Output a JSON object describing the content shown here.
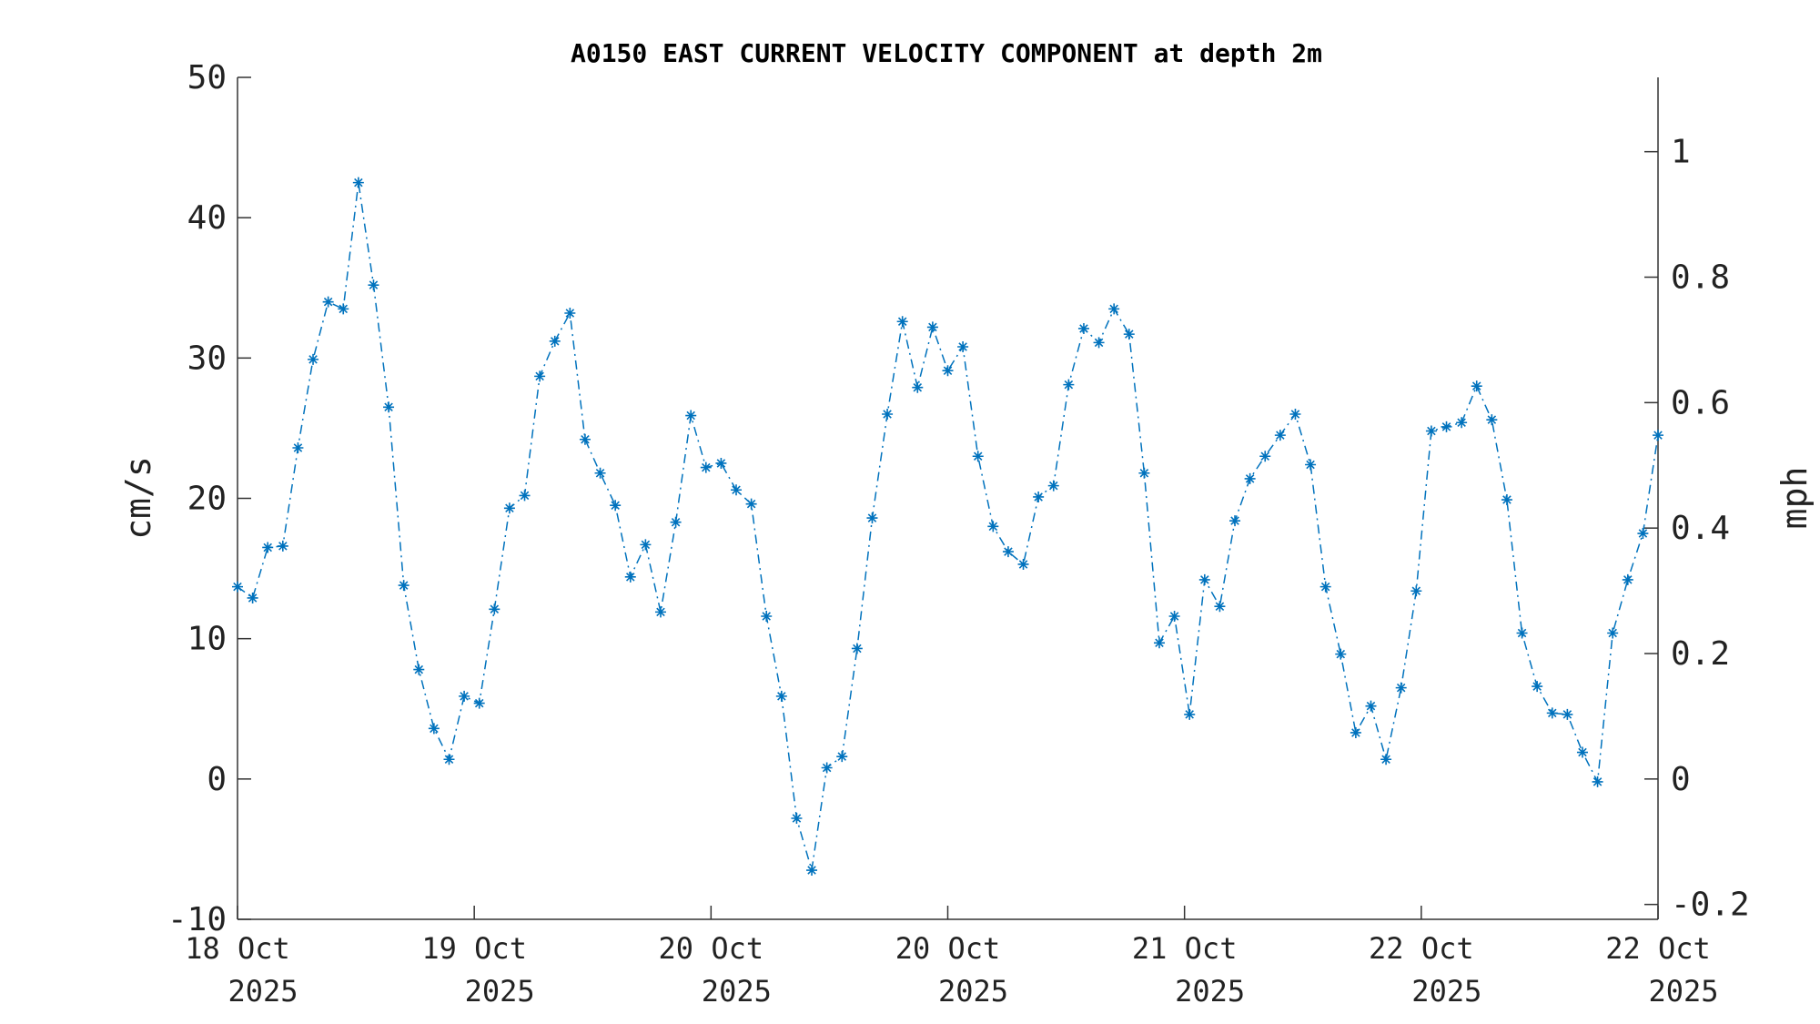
{
  "chart_data": {
    "type": "line",
    "title": "A0150 EAST CURRENT VELOCITY COMPONENT at depth 2m",
    "ylabel_left": "cm/s",
    "ylabel_right": "mph",
    "ylim_left": [
      -10,
      50
    ],
    "yticks_left": [
      "-10",
      "0",
      "10",
      "20",
      "30",
      "40",
      "50"
    ],
    "ylim_right": [
      -0.2237,
      1.1185
    ],
    "yticks_right": [
      {
        "value": -0.2,
        "label": "-0.2"
      },
      {
        "value": 0,
        "label": "0"
      },
      {
        "value": 0.2,
        "label": "0.2"
      },
      {
        "value": 0.4,
        "label": "0.4"
      },
      {
        "value": 0.6,
        "label": "0.6"
      },
      {
        "value": 0.8,
        "label": "0.8"
      },
      {
        "value": 1,
        "label": "1"
      }
    ],
    "xticks": [
      {
        "day": "18 Oct",
        "year": "2025"
      },
      {
        "day": "19 Oct",
        "year": "2025"
      },
      {
        "day": "20 Oct",
        "year": "2025"
      },
      {
        "day": "20 Oct",
        "year": "2025"
      },
      {
        "day": "21 Oct",
        "year": "2025"
      },
      {
        "day": "22 Oct",
        "year": "2025"
      },
      {
        "day": "22 Oct",
        "year": "2025"
      }
    ],
    "grid": false,
    "line_style": "dash-dot",
    "marker": "asterisk",
    "color": "#0072BD",
    "series": [
      {
        "values": [
          13.7,
          12.9,
          16.5,
          16.6,
          23.6,
          29.9,
          34.0,
          33.5,
          42.5,
          35.2,
          26.5,
          13.8,
          7.8,
          3.6,
          1.4,
          5.9,
          5.4,
          12.1,
          19.3,
          20.2,
          28.7,
          31.2,
          33.2,
          24.2,
          21.8,
          19.5,
          14.4,
          16.7,
          11.9,
          18.3,
          25.9,
          22.2,
          22.5,
          20.6,
          19.6,
          11.6,
          5.9,
          -2.8,
          -6.5,
          0.8,
          1.6,
          9.3,
          18.6,
          26.0,
          32.6,
          27.9,
          32.2,
          29.1,
          30.8,
          23.0,
          18.0,
          16.2,
          15.3,
          20.1,
          20.9,
          28.1,
          32.1,
          31.1,
          33.5,
          31.7,
          21.8,
          9.7,
          11.6,
          4.6,
          14.2,
          12.3,
          18.4,
          21.4,
          23.0,
          24.5,
          26.0,
          22.4,
          13.7,
          8.9,
          3.3,
          5.2,
          1.4,
          6.5,
          13.4,
          24.8,
          25.1,
          25.4,
          28.0,
          25.6,
          19.9,
          10.4,
          6.6,
          4.7,
          4.6,
          1.9,
          -0.2,
          10.4,
          14.2,
          17.5,
          24.5
        ]
      }
    ]
  }
}
